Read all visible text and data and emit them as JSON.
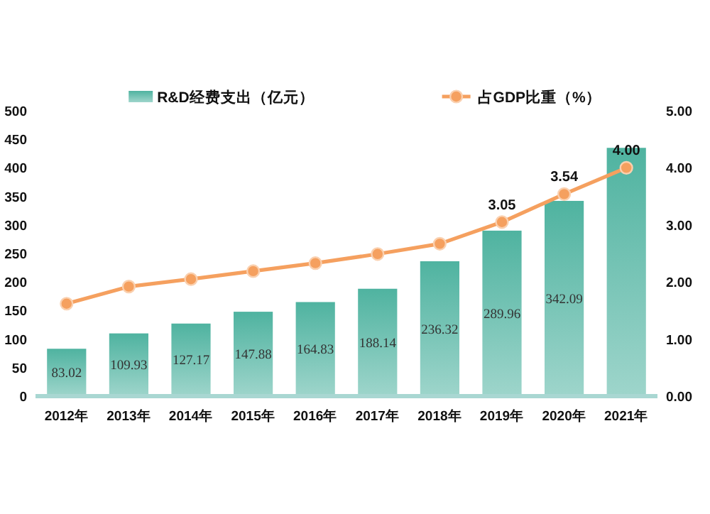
{
  "chart_data": {
    "type": "bar",
    "categories": [
      "2012年",
      "2013年",
      "2014年",
      "2015年",
      "2016年",
      "2017年",
      "2018年",
      "2019年",
      "2020年",
      "2021年"
    ],
    "series": [
      {
        "name": "R&D经费支出（亿元）",
        "color": "#4fb3a0",
        "values": [
          83.02,
          109.93,
          127.17,
          147.88,
          164.83,
          188.14,
          236.32,
          289.96,
          342.09,
          435
        ],
        "value_labels": [
          "83.02",
          "109.93",
          "127.17",
          "147.88",
          "164.83",
          "188.14",
          "236.32",
          "289.96",
          "342.09",
          null
        ]
      },
      {
        "name": "占GDP比重（%）",
        "type": "line",
        "axis": "y2",
        "color": "#f5a05f",
        "values": [
          1.62,
          1.92,
          2.05,
          2.19,
          2.33,
          2.49,
          2.67,
          3.05,
          3.54,
          4.0
        ],
        "value_labels": [
          null,
          null,
          null,
          null,
          null,
          null,
          null,
          "3.05",
          "3.54",
          "4.00"
        ]
      }
    ],
    "ylim": [
      0,
      500
    ],
    "yticks": [
      0,
      50,
      100,
      150,
      200,
      250,
      300,
      350,
      400,
      450,
      500
    ],
    "y2lim": [
      0,
      5
    ],
    "y2ticks": [
      {
        "value": 0,
        "label": "0.00"
      },
      {
        "value": 1,
        "label": "1.00"
      },
      {
        "value": 2,
        "label": "2.00"
      },
      {
        "value": 3,
        "label": "3.00"
      },
      {
        "value": 4,
        "label": "4.00"
      },
      {
        "value": 5,
        "label": "5.00"
      }
    ],
    "legend": "top",
    "marker": "circle"
  }
}
